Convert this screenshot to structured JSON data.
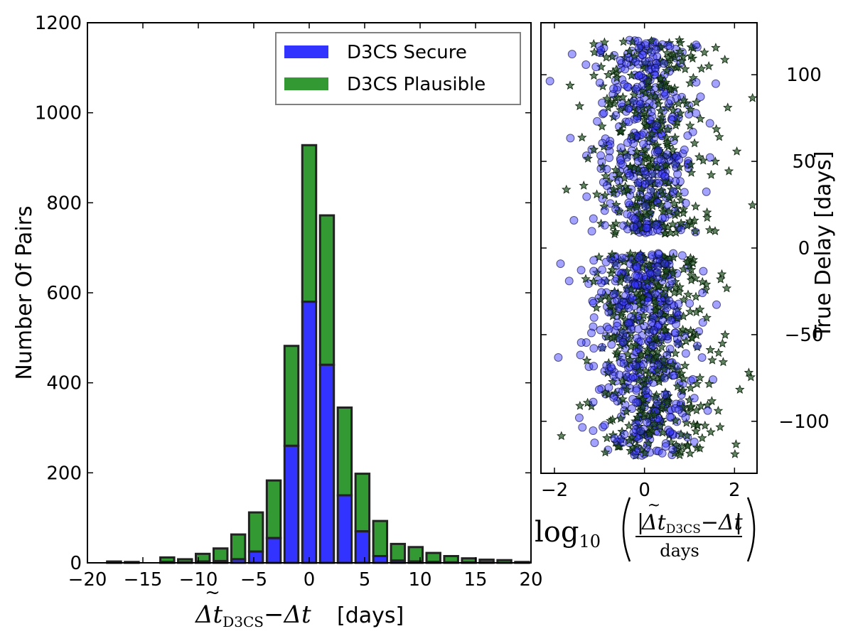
{
  "chart_data": [
    {
      "type": "bar",
      "stacked": true,
      "xlabel": {
        "symbol_main": "Δt",
        "symbol_sub": "D3CS",
        "minus": "−",
        "symbol_rhs": "Δt",
        "units": "[days]"
      },
      "ylabel": "Number Of Pairs",
      "xlim": [
        -20,
        20
      ],
      "ylim": [
        0,
        1200
      ],
      "xticks": [
        -20,
        -15,
        -10,
        -5,
        0,
        5,
        10,
        15,
        20
      ],
      "xtick_labels": [
        "−20",
        "−15",
        "−10",
        "−5",
        "0",
        "5",
        "10",
        "15",
        "20"
      ],
      "yticks": [
        0,
        200,
        400,
        600,
        800,
        1000,
        1200
      ],
      "ytick_labels": [
        "0",
        "200",
        "400",
        "600",
        "800",
        "1000",
        "1200"
      ],
      "bin_width": 1.6,
      "bin_centers": [
        -17.6,
        -16.0,
        -12.8,
        -11.2,
        -9.6,
        -8.0,
        -6.4,
        -4.8,
        -3.2,
        -1.6,
        0.0,
        1.6,
        3.2,
        4.8,
        6.4,
        8.0,
        9.6,
        11.2,
        12.8,
        14.4,
        16.0,
        17.6,
        19.2
      ],
      "series": [
        {
          "name": "D3CS Secure",
          "color": "#3333ff",
          "values": [
            1,
            0,
            2,
            1,
            3,
            4,
            8,
            25,
            55,
            260,
            580,
            440,
            150,
            70,
            15,
            5,
            3,
            2,
            1,
            1,
            1,
            0,
            0
          ]
        },
        {
          "name": "D3CS Plausible",
          "color": "#339933",
          "values": [
            2,
            2,
            10,
            7,
            17,
            28,
            55,
            87,
            128,
            222,
            348,
            332,
            195,
            128,
            78,
            37,
            32,
            20,
            14,
            9,
            6,
            6,
            2
          ]
        }
      ],
      "legend": {
        "position": "top-right",
        "entries": [
          "D3CS Secure",
          "D3CS Plausible"
        ]
      }
    },
    {
      "type": "scatter",
      "xlabel": {
        "func": "log",
        "sub": "10",
        "num_main": "Δt",
        "num_sub": "D3CS",
        "minus": "−",
        "num_rhs": "Δt",
        "den": "days"
      },
      "ylabel": "True Delay [days]",
      "xlim": [
        -2.3,
        2.5
      ],
      "ylim": [
        -130,
        130
      ],
      "xticks": [
        -2,
        0,
        2
      ],
      "xtick_labels": [
        "−2",
        "0",
        "2"
      ],
      "yticks": [
        100,
        50,
        0,
        -50,
        -100
      ],
      "ytick_labels": [
        "100",
        "50",
        "0",
        "−50",
        "−100"
      ],
      "yaxis_side": "right",
      "series": [
        {
          "name": "D3CS Secure",
          "marker": "circle",
          "color": "#3333ff",
          "approx_count": 1500
        },
        {
          "name": "D3CS Plausible",
          "marker": "star",
          "color": "#1f4f1f",
          "approx_count": 1500
        }
      ]
    }
  ]
}
